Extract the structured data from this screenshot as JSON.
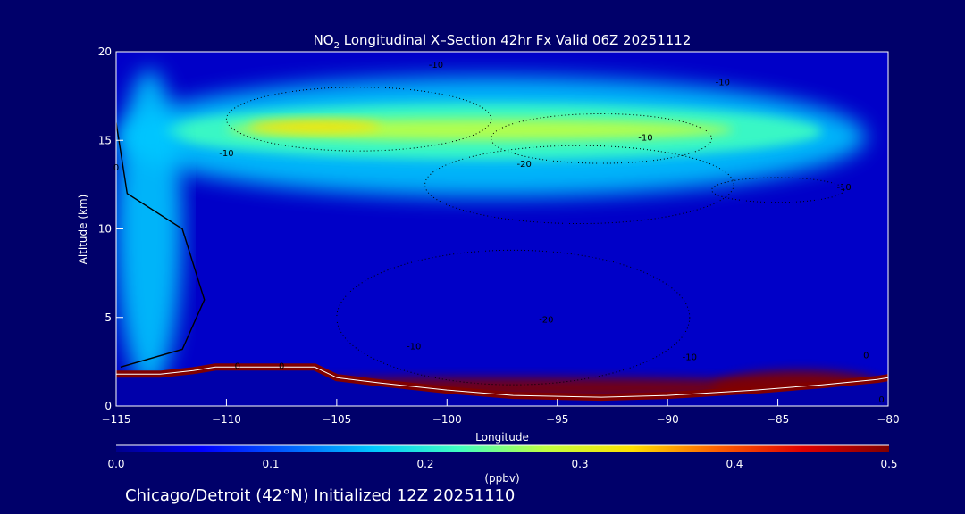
{
  "chart_data": {
    "type": "heatmap",
    "title_prefix": "NO",
    "title_subscript": "2",
    "title_suffix": " Longitudinal X–Section 42hr  Fx Valid 06Z 20251112",
    "xlabel": "Longitude",
    "ylabel": "Altitude (km)",
    "xlim": [
      -115,
      -80
    ],
    "ylim": [
      0,
      20
    ],
    "x_ticks": [
      {
        "value": -115,
        "label": "−115"
      },
      {
        "value": -110,
        "label": "−110"
      },
      {
        "value": -105,
        "label": "−105"
      },
      {
        "value": -100,
        "label": "−100"
      },
      {
        "value": -95,
        "label": "−95"
      },
      {
        "value": -90,
        "label": "−90"
      },
      {
        "value": -85,
        "label": "−85"
      },
      {
        "value": -80,
        "label": "−80"
      }
    ],
    "y_ticks": [
      {
        "value": 0,
        "label": "0"
      },
      {
        "value": 5,
        "label": "5"
      },
      {
        "value": 10,
        "label": "10"
      },
      {
        "value": 15,
        "label": "15"
      },
      {
        "value": 20,
        "label": "20"
      }
    ],
    "colorbar": {
      "range": [
        0,
        0.5
      ],
      "units": "(ppbv)",
      "ticks": [
        {
          "value": 0.0,
          "label": "0.0"
        },
        {
          "value": 0.1,
          "label": "0.1"
        },
        {
          "value": 0.2,
          "label": "0.2"
        },
        {
          "value": 0.3,
          "label": "0.3"
        },
        {
          "value": 0.4,
          "label": "0.4"
        },
        {
          "value": 0.5,
          "label": "0.5"
        }
      ],
      "colors": [
        "#00008c",
        "#0000ff",
        "#0060ff",
        "#00c8ff",
        "#40ffc0",
        "#c0ff40",
        "#ffe000",
        "#ff6000",
        "#e00000",
        "#800000"
      ]
    },
    "surface_altitude_km": [
      {
        "lon": -115,
        "alt": 1.8
      },
      {
        "lon": -113,
        "alt": 1.8
      },
      {
        "lon": -111.5,
        "alt": 2.0
      },
      {
        "lon": -110.5,
        "alt": 2.2
      },
      {
        "lon": -106,
        "alt": 2.2
      },
      {
        "lon": -105,
        "alt": 1.6
      },
      {
        "lon": -103,
        "alt": 1.3
      },
      {
        "lon": -100,
        "alt": 0.9
      },
      {
        "lon": -97,
        "alt": 0.6
      },
      {
        "lon": -93,
        "alt": 0.5
      },
      {
        "lon": -90,
        "alt": 0.6
      },
      {
        "lon": -86,
        "alt": 0.9
      },
      {
        "lon": -83,
        "alt": 1.2
      },
      {
        "lon": -80.5,
        "alt": 1.5
      },
      {
        "lon": -80,
        "alt": 1.6
      }
    ],
    "concentration_bands": [
      {
        "name": "upper-layer-outer",
        "value": 0.15,
        "lon_range": [
          -115,
          -81
        ],
        "alt_center": 15.2,
        "alt_halfwidth": 3.4
      },
      {
        "name": "upper-layer-mid",
        "value": 0.2,
        "lon_range": [
          -113,
          -83
        ],
        "alt_center": 15.5,
        "alt_halfwidth": 1.6
      },
      {
        "name": "upper-layer-core",
        "value": 0.27,
        "lon_range": [
          -110,
          -87
        ],
        "alt_center": 15.6,
        "alt_halfwidth": 0.6
      },
      {
        "name": "upper-layer-max",
        "value": 0.32,
        "lon_range": [
          -109,
          -103
        ],
        "alt_center": 15.8,
        "alt_halfwidth": 0.35
      },
      {
        "name": "west-boundary-column",
        "value": 0.14,
        "lon_range": [
          -115,
          -112
        ],
        "alt_center": 10,
        "alt_halfwidth": 9
      },
      {
        "name": "boundary-layer",
        "value": 0.5,
        "lon_range": [
          -115,
          -80
        ],
        "alt_center": 1.0,
        "alt_halfwidth": 0.6
      },
      {
        "name": "east-pbl-max",
        "value": 0.5,
        "lon_range": [
          -88,
          -80
        ],
        "alt_center": 1.0,
        "alt_halfwidth": 1.0
      }
    ],
    "contour_labels": [
      {
        "text": "-10",
        "lon": -100.5,
        "alt": 19.1
      },
      {
        "text": "-10",
        "lon": -87.5,
        "alt": 18.1
      },
      {
        "text": "-10",
        "lon": -91,
        "alt": 15.0
      },
      {
        "text": "-10",
        "lon": -110,
        "alt": 14.1
      },
      {
        "text": "-10",
        "lon": -82,
        "alt": 12.2
      },
      {
        "text": "-20",
        "lon": -96.5,
        "alt": 13.5
      },
      {
        "text": "-20",
        "lon": -95.5,
        "alt": 4.7
      },
      {
        "text": "-10",
        "lon": -101.5,
        "alt": 3.2
      },
      {
        "text": "-10",
        "lon": -89,
        "alt": 2.6
      },
      {
        "text": "0",
        "lon": -109.5,
        "alt": 2.1
      },
      {
        "text": "0",
        "lon": -107.5,
        "alt": 2.1
      },
      {
        "text": "0",
        "lon": -115,
        "alt": 13.3
      },
      {
        "text": "0",
        "lon": -81,
        "alt": 2.7
      },
      {
        "text": "0",
        "lon": -80.3,
        "alt": 0.2
      }
    ]
  },
  "footer": {
    "caption": "Chicago/Detroit (42°N) Initialized 12Z 20251110"
  }
}
